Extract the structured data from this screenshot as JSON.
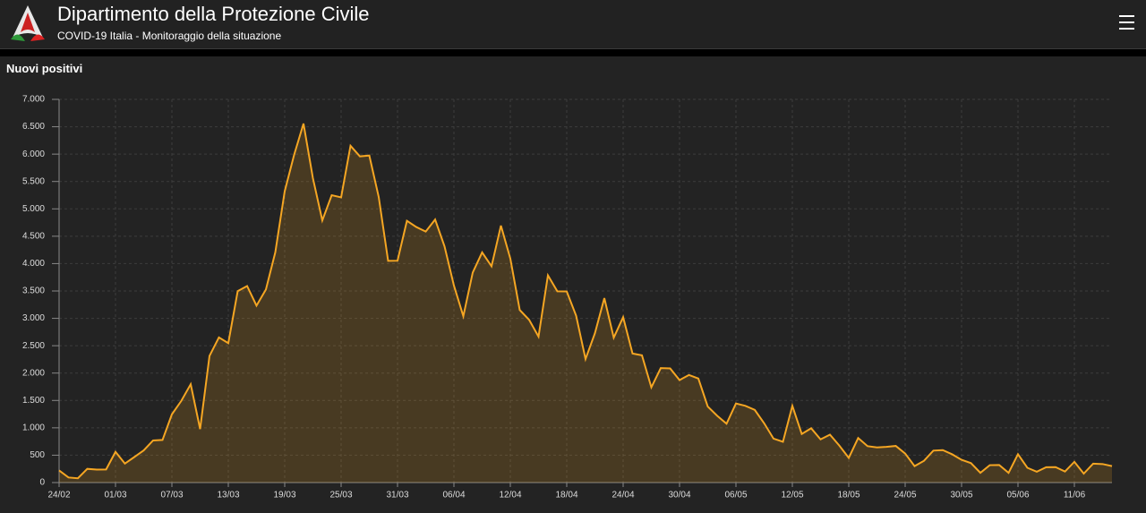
{
  "header": {
    "title": "Dipartimento della Protezione Civile",
    "subtitle": "COVID-19 Italia - Monitoraggio della situazione"
  },
  "chart_data": {
    "type": "area",
    "title": "Nuovi positivi",
    "color": "#f5a623",
    "grid": true,
    "categories": [
      "24/02",
      null,
      null,
      null,
      null,
      null,
      "01/03",
      null,
      null,
      null,
      null,
      null,
      "07/03",
      null,
      null,
      null,
      null,
      null,
      "13/03",
      null,
      null,
      null,
      null,
      null,
      "19/03",
      null,
      null,
      null,
      null,
      null,
      "25/03",
      null,
      null,
      null,
      null,
      null,
      "31/03",
      null,
      null,
      null,
      null,
      null,
      "06/04",
      null,
      null,
      null,
      null,
      null,
      "12/04",
      null,
      null,
      null,
      null,
      null,
      "18/04",
      null,
      null,
      null,
      null,
      null,
      "24/04",
      null,
      null,
      null,
      null,
      null,
      "30/04",
      null,
      null,
      null,
      null,
      null,
      "06/05",
      null,
      null,
      null,
      null,
      null,
      "12/05",
      null,
      null,
      null,
      null,
      null,
      "18/05",
      null,
      null,
      null,
      null,
      null,
      "24/05",
      null,
      null,
      null,
      null,
      null,
      "30/05",
      null,
      null,
      null,
      null,
      null,
      "05/06",
      null,
      null,
      null,
      null,
      null,
      "11/06",
      null,
      null,
      null,
      null
    ],
    "values": [
      221,
      93,
      78,
      250,
      238,
      240,
      561,
      347,
      466,
      587,
      769,
      778,
      1247,
      1492,
      1797,
      977,
      2313,
      2651,
      2547,
      3497,
      3590,
      3233,
      3526,
      4207,
      5322,
      5986,
      6557,
      5560,
      4789,
      5249,
      5210,
      6153,
      5959,
      5974,
      5217,
      4050,
      4053,
      4782,
      4668,
      4585,
      4805,
      4316,
      3599,
      3039,
      3836,
      4204,
      3951,
      4694,
      4092,
      3153,
      2972,
      2667,
      3786,
      3493,
      3491,
      3047,
      2256,
      2729,
      3370,
      2646,
      3021,
      2357,
      2324,
      1739,
      2091,
      2086,
      1872,
      1965,
      1900,
      1389,
      1221,
      1075,
      1444,
      1401,
      1327,
      1083,
      802,
      744,
      1402,
      888,
      992,
      789,
      875,
      675,
      451,
      813,
      665,
      642,
      652,
      669,
      531,
      300,
      397,
      584,
      593,
      516,
      416,
      355,
      178,
      318,
      321,
      177,
      518,
      270,
      197,
      280,
      283,
      202,
      379,
      163,
      346,
      338,
      301
    ],
    "ylim": [
      0,
      7000
    ],
    "yticks": [
      0,
      500,
      {
        "value": 1000,
        "label": "1.000"
      },
      {
        "value": 1500,
        "label": "1.500"
      },
      {
        "value": 2000,
        "label": "2.000"
      },
      {
        "value": 2500,
        "label": "2.500"
      },
      {
        "value": 3000,
        "label": "3.000"
      },
      {
        "value": 3500,
        "label": "3.500"
      },
      {
        "value": 4000,
        "label": "4.000"
      },
      {
        "value": 4500,
        "label": "4.500"
      },
      {
        "value": 5000,
        "label": "5.000"
      },
      {
        "value": 5500,
        "label": "5.500"
      },
      {
        "value": 6000,
        "label": "6.000"
      },
      {
        "value": 6500,
        "label": "6.500"
      },
      {
        "value": 7000,
        "label": "7.000"
      }
    ]
  }
}
